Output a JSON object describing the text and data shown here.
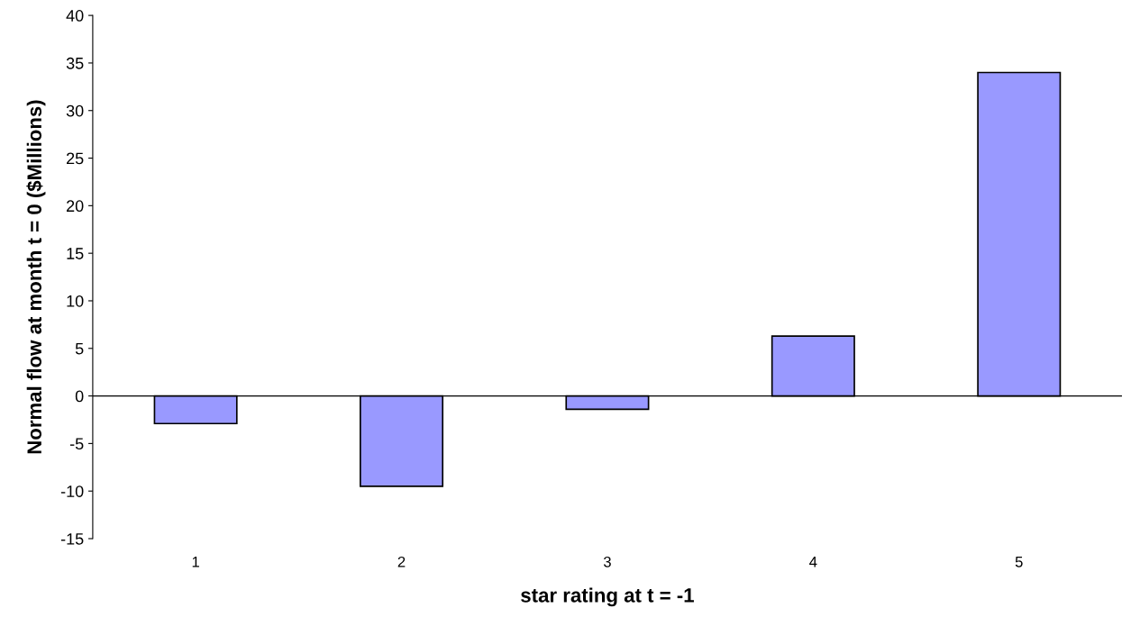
{
  "chart_data": {
    "type": "bar",
    "xlabel": "star rating at t = -1",
    "ylabel": "Normal flow at month t = 0 ($Millions)",
    "categories": [
      "1",
      "2",
      "3",
      "4",
      "5"
    ],
    "values": [
      -2.9,
      -9.5,
      -1.4,
      6.3,
      34.0
    ],
    "color": "#9999ff",
    "ylim": [
      -15,
      40
    ],
    "yticks": [
      -15,
      -10,
      -5,
      0,
      5,
      10,
      15,
      20,
      25,
      30,
      35,
      40
    ],
    "ref_lines": [
      {
        "axis": "y",
        "value": 0,
        "color": "#000000"
      }
    ],
    "grid": false,
    "legend": false
  }
}
